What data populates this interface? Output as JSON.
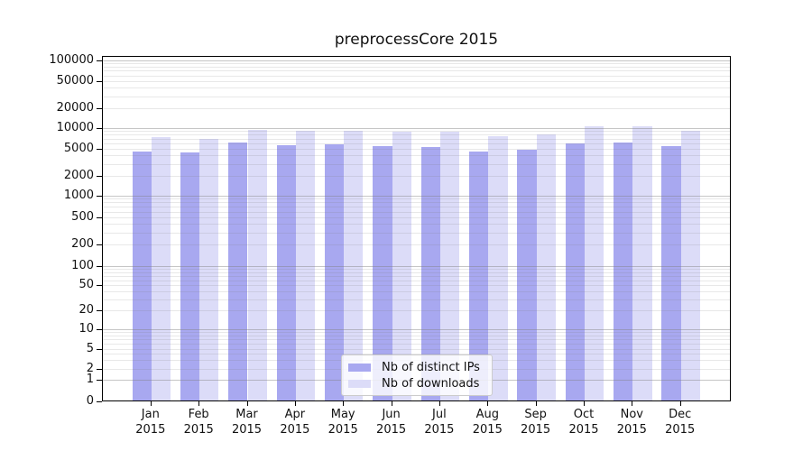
{
  "chart_data": {
    "type": "bar",
    "title": "preprocessCore 2015",
    "categories": [
      "Jan",
      "Feb",
      "Mar",
      "Apr",
      "May",
      "Jun",
      "Jul",
      "Aug",
      "Sep",
      "Oct",
      "Nov",
      "Dec"
    ],
    "x_sublabel": "2015",
    "series": [
      {
        "name": "Nb of distinct IPs",
        "color": "#a8a8f0",
        "values": [
          4600,
          4400,
          6100,
          5700,
          5800,
          5400,
          5300,
          4500,
          4900,
          6000,
          6100,
          5400
        ]
      },
      {
        "name": "Nb of downloads",
        "color": "#dcdcf8",
        "values": [
          7300,
          7000,
          9300,
          9100,
          9100,
          8800,
          8700,
          7600,
          8000,
          10400,
          10600,
          9100
        ]
      }
    ],
    "y_ticks": [
      "0",
      "1",
      "2",
      "5",
      "10",
      "20",
      "50",
      "100",
      "200",
      "500",
      "1000",
      "2000",
      "5000",
      "10000",
      "20000",
      "50000",
      "100000"
    ],
    "y_scale": "symlog",
    "ylim": [
      0,
      200000
    ],
    "grid": true,
    "legend_position": "lower center",
    "colors": {
      "bar_distinct_ips": "#a8a8f0",
      "bar_downloads": "#dcdcf8",
      "grid_major": "#c6c6c6",
      "grid_minor": "#e8e8e8",
      "axis": "#000000",
      "text": "#111111",
      "background": "#ffffff"
    }
  }
}
